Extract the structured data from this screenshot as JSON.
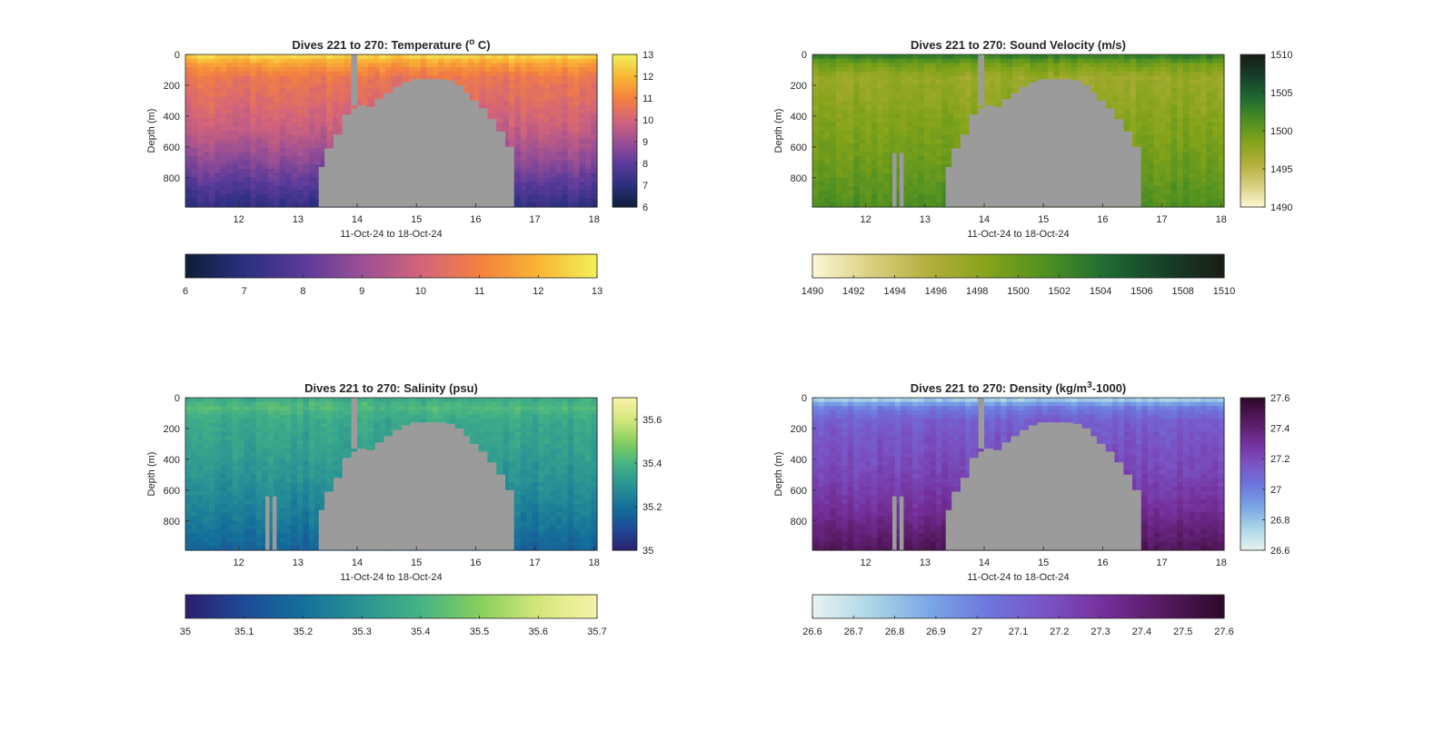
{
  "figure": {
    "background": "#ffffff",
    "mask_color": "#9b9b9b"
  },
  "chart_data": [
    {
      "type": "heatmap",
      "title": "Dives 221 to 270: Temperature (",
      "title_sup": "o",
      "title_end": " C)",
      "xlabel": "11-Oct-24 to 18-Oct-24",
      "ylabel": "Depth (m)",
      "xlim": [
        11.1,
        18.05
      ],
      "ylim": [
        990,
        0
      ],
      "xticks": [
        "12",
        "13",
        "14",
        "15",
        "16",
        "17",
        "18"
      ],
      "yticks": [
        "0",
        "200",
        "400",
        "600",
        "800"
      ],
      "value_range": [
        6,
        13
      ],
      "colormap": [
        "#0f1e36",
        "#2a2f7e",
        "#5a3a9a",
        "#9a4f95",
        "#d3647a",
        "#f4803f",
        "#f9b534",
        "#f2f05a"
      ],
      "vertical_colorbar_ticks": [
        "6",
        "7",
        "8",
        "9",
        "10",
        "11",
        "12",
        "13"
      ],
      "horizontal_colorbar_ticks": [
        "6",
        "7",
        "8",
        "9",
        "10",
        "11",
        "12",
        "13"
      ],
      "profile": {
        "depth_m": [
          0,
          60,
          150,
          300,
          500,
          700,
          900,
          990
        ],
        "value": [
          12.7,
          11.6,
          10.7,
          10.3,
          9.7,
          8.7,
          7.6,
          7.1
        ]
      }
    },
    {
      "type": "heatmap",
      "title": "Dives 221 to 270: Sound Velocity (m/s)",
      "xlabel": "11-Oct-24 to 18-Oct-24",
      "ylabel": "Depth (m)",
      "xlim": [
        11.1,
        18.05
      ],
      "ylim": [
        990,
        0
      ],
      "xticks": [
        "12",
        "13",
        "14",
        "15",
        "16",
        "17",
        "18"
      ],
      "yticks": [
        "0",
        "200",
        "400",
        "600",
        "800"
      ],
      "value_range": [
        1490,
        1510
      ],
      "colormap": [
        "#fdf8d6",
        "#d9cf7f",
        "#b3ae3c",
        "#84a319",
        "#4d8f22",
        "#1f6b33",
        "#173f28",
        "#1a1d16"
      ],
      "vertical_colorbar_ticks": [
        "1490",
        "1495",
        "1500",
        "1505",
        "1510"
      ],
      "horizontal_colorbar_ticks": [
        "1490",
        "1492",
        "1494",
        "1496",
        "1498",
        "1500",
        "1502",
        "1504",
        "1506",
        "1508",
        "1510"
      ],
      "profile": {
        "depth_m": [
          0,
          60,
          150,
          300,
          500,
          700,
          900,
          990
        ],
        "value": [
          1503.5,
          1499.5,
          1497.2,
          1497.8,
          1498.8,
          1499.6,
          1500.8,
          1501.4
        ]
      }
    },
    {
      "type": "heatmap",
      "title": "Dives 221 to 270: Salinity (psu)",
      "xlabel": "11-Oct-24 to 18-Oct-24",
      "ylabel": "Depth (m)",
      "xlim": [
        11.1,
        18.05
      ],
      "ylim": [
        990,
        0
      ],
      "xticks": [
        "12",
        "13",
        "14",
        "15",
        "16",
        "17",
        "18"
      ],
      "yticks": [
        "0",
        "200",
        "400",
        "600",
        "800"
      ],
      "value_range": [
        35,
        35.7
      ],
      "colormap": [
        "#2b1e6e",
        "#1e4a97",
        "#14709a",
        "#2a9494",
        "#45b384",
        "#86cf5e",
        "#d4e77a",
        "#f7f2a9"
      ],
      "vertical_colorbar_ticks": [
        "35",
        "35.2",
        "35.4",
        "35.6"
      ],
      "horizontal_colorbar_ticks": [
        "35",
        "35.1",
        "35.2",
        "35.3",
        "35.4",
        "35.5",
        "35.6",
        "35.7"
      ],
      "profile": {
        "depth_m": [
          0,
          60,
          150,
          300,
          500,
          700,
          900,
          990
        ],
        "value": [
          35.36,
          35.42,
          35.36,
          35.34,
          35.3,
          35.25,
          35.19,
          35.16
        ]
      }
    },
    {
      "type": "heatmap",
      "title": "Dives 221 to 270: Density (kg/m",
      "title_sup": "3",
      "title_end": "-1000)",
      "xlabel": "11-Oct-24 to 18-Oct-24",
      "ylabel": "Depth (m)",
      "xlim": [
        11.1,
        18.05
      ],
      "ylim": [
        990,
        0
      ],
      "xticks": [
        "12",
        "13",
        "14",
        "15",
        "16",
        "17",
        "18"
      ],
      "yticks": [
        "0",
        "200",
        "400",
        "600",
        "800"
      ],
      "value_range": [
        26.6,
        27.6
      ],
      "colormap": [
        "#e9f3f1",
        "#acd6e6",
        "#7aa6e6",
        "#6d76de",
        "#7a52c4",
        "#742e98",
        "#55195f",
        "#2d0a28"
      ],
      "vertical_colorbar_ticks": [
        "26.6",
        "26.8",
        "27",
        "27.2",
        "27.4",
        "27.6"
      ],
      "horizontal_colorbar_ticks": [
        "26.6",
        "26.7",
        "26.8",
        "26.9",
        "27",
        "27.1",
        "27.2",
        "27.3",
        "27.4",
        "27.5",
        "27.6"
      ],
      "profile": {
        "depth_m": [
          0,
          60,
          150,
          300,
          500,
          700,
          900,
          990
        ],
        "value": [
          26.72,
          27.0,
          27.12,
          27.17,
          27.22,
          27.3,
          27.42,
          27.48
        ]
      }
    }
  ],
  "no_data_mask": {
    "seamount": {
      "day": [
        13.35,
        13.45,
        13.6,
        13.75,
        13.9,
        14.0,
        14.15,
        14.3,
        14.45,
        14.6,
        14.75,
        14.9,
        15.05,
        15.2,
        15.35,
        15.5,
        15.65,
        15.8,
        15.9,
        16.05,
        16.2,
        16.35,
        16.5,
        16.65
      ],
      "top_depth_m": [
        730,
        610,
        520,
        390,
        350,
        330,
        340,
        290,
        250,
        210,
        180,
        160,
        160,
        160,
        160,
        170,
        200,
        250,
        300,
        350,
        420,
        500,
        600,
        730
      ]
    },
    "gaps": [
      {
        "panel": 0,
        "day_from": 13.9,
        "day_to": 14.0,
        "depth_from_m": 0,
        "depth_to_m": 330
      },
      {
        "panel": 1,
        "day_from": 13.9,
        "day_to": 14.0,
        "depth_from_m": 0,
        "depth_to_m": 330
      },
      {
        "panel": 1,
        "day_from": 12.45,
        "day_to": 12.52,
        "depth_from_m": 640,
        "depth_to_m": 990
      },
      {
        "panel": 1,
        "day_from": 12.57,
        "day_to": 12.64,
        "depth_from_m": 640,
        "depth_to_m": 990
      },
      {
        "panel": 2,
        "day_from": 13.9,
        "day_to": 14.0,
        "depth_from_m": 0,
        "depth_to_m": 330
      },
      {
        "panel": 2,
        "day_from": 12.45,
        "day_to": 12.52,
        "depth_from_m": 640,
        "depth_to_m": 990
      },
      {
        "panel": 2,
        "day_from": 12.57,
        "day_to": 12.64,
        "depth_from_m": 640,
        "depth_to_m": 990
      },
      {
        "panel": 3,
        "day_from": 13.9,
        "day_to": 14.0,
        "depth_from_m": 0,
        "depth_to_m": 330
      },
      {
        "panel": 3,
        "day_from": 12.45,
        "day_to": 12.52,
        "depth_from_m": 640,
        "depth_to_m": 990
      },
      {
        "panel": 3,
        "day_from": 12.57,
        "day_to": 12.64,
        "depth_from_m": 640,
        "depth_to_m": 990
      }
    ]
  }
}
